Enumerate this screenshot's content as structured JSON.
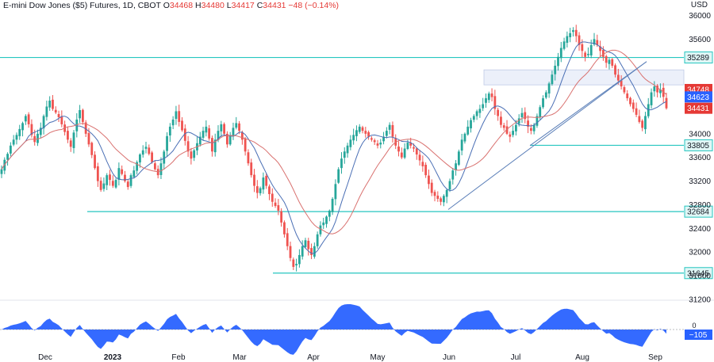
{
  "header": {
    "symbol": "E-mini Dow Jones ($5) Futures, 1D, CBOT",
    "o_label": "O",
    "o_value": "34468",
    "h_label": "H",
    "h_value": "34480",
    "l_label": "L",
    "l_value": "34417",
    "c_label": "C",
    "c_value": "34431",
    "change": "−48 (−0.14%)"
  },
  "currency": "USD",
  "colors": {
    "up": "#26a69a",
    "down": "#ef5350",
    "level": "#26c6c0",
    "sma_fast": "#4a6fb5",
    "sma_slow": "#d9716f",
    "trend": "#5b7fb8",
    "oscillator": "#2962ff",
    "last_price_bg": "#ef5350",
    "badge_blue": "#2962ff",
    "badge_red": "#e53935"
  },
  "chart_data": {
    "type": "candlestick",
    "ylim": [
      31200,
      36100
    ],
    "yticks": [
      31200,
      31600,
      32000,
      32400,
      32800,
      33200,
      33600,
      34000,
      34400,
      34800,
      35200,
      35600,
      36000
    ],
    "yticks_shown": [
      "36000",
      "35600",
      "34000",
      "33600",
      "33200",
      "32800",
      "32400",
      "32000",
      "31600",
      "31200"
    ],
    "xticks": [
      {
        "label": "Dec",
        "x_day": 0
      },
      {
        "label": "2023",
        "x_day": 1
      },
      {
        "label": "Feb",
        "x_day": 2
      },
      {
        "label": "Mar",
        "x_day": 3
      },
      {
        "label": "Apr",
        "x_day": 4
      },
      {
        "label": "May",
        "x_day": 5
      },
      {
        "label": "Jun",
        "x_day": 6
      },
      {
        "label": "Jul",
        "x_day": 7
      },
      {
        "label": "Aug",
        "x_day": 8
      },
      {
        "label": "Sep",
        "x_day": 9
      }
    ],
    "levels": [
      {
        "value": 35289,
        "label": "35289"
      },
      {
        "value": 33805,
        "label": "33805"
      },
      {
        "value": 32684,
        "label": "32684"
      },
      {
        "value": 31645,
        "label": "31645"
      }
    ],
    "price_badges": [
      {
        "value": 34748,
        "label": "34748",
        "color": "red"
      },
      {
        "value": 34623,
        "label": "34623",
        "color": "blue"
      },
      {
        "value": 34431,
        "label": "34431",
        "color": "red"
      }
    ],
    "closes": [
      33400,
      33560,
      33660,
      33800,
      33900,
      33980,
      34080,
      34180,
      34300,
      34160,
      33980,
      33860,
      34000,
      34100,
      34300,
      34460,
      34560,
      34420,
      34360,
      34280,
      34160,
      34030,
      33900,
      33780,
      34020,
      34240,
      34400,
      34200,
      34000,
      33820,
      33640,
      33420,
      33200,
      33050,
      33160,
      33300,
      33220,
      33120,
      33220,
      33420,
      33320,
      33200,
      33100,
      33300,
      33380,
      33520,
      33650,
      33720,
      33780,
      33660,
      33520,
      33400,
      33300,
      33500,
      33700,
      33960,
      34120,
      34240,
      34380,
      34200,
      34060,
      33880,
      33700,
      33580,
      33720,
      33840,
      33950,
      34050,
      34120,
      33920,
      33700,
      33900,
      34050,
      34160,
      34000,
      33820,
      33980,
      34100,
      34180,
      34050,
      33900,
      33700,
      33500,
      33300,
      33120,
      33000,
      33080,
      33260,
      33120,
      32980,
      32850,
      32780,
      32700,
      32500,
      32300,
      32100,
      31900,
      31750,
      31800,
      31950,
      32100,
      32200,
      32050,
      31950,
      32100,
      32300,
      32450,
      32500,
      32600,
      32700,
      32900,
      33150,
      33400,
      33580,
      33700,
      33800,
      33900,
      33980,
      34060,
      34120,
      34050,
      34000,
      33950,
      33900,
      33860,
      33800,
      33850,
      33950,
      34050,
      34150,
      33950,
      33800,
      33700,
      33600,
      33750,
      33850,
      33800,
      33750,
      33650,
      33550,
      33450,
      33300,
      33150,
      33000,
      32950,
      32900,
      32850,
      32950,
      33050,
      33200,
      33380,
      33500,
      33700,
      33900,
      34000,
      34120,
      34230,
      34300,
      34380,
      34420,
      34500,
      34600,
      34680,
      34620,
      34420,
      34300,
      34150,
      34100,
      34000,
      33950,
      34050,
      34150,
      34260,
      34350,
      34250,
      34120,
      34050,
      34150,
      34300,
      34450,
      34600,
      34700,
      34850,
      35000,
      35150,
      35300,
      35450,
      35560,
      35650,
      35700,
      35750,
      35650,
      35500,
      35400,
      35300,
      35350,
      35500,
      35600,
      35500,
      35400,
      35300,
      35200,
      35250,
      35150,
      35000,
      34900,
      34800,
      34700,
      34600,
      34500,
      34420,
      34320,
      34200,
      34100,
      34300,
      34500,
      34700,
      34800,
      34700,
      34748,
      34623,
      34431
    ],
    "oscillator_last": "−105",
    "sma_fast_name": "",
    "sma_slow_name": ""
  }
}
